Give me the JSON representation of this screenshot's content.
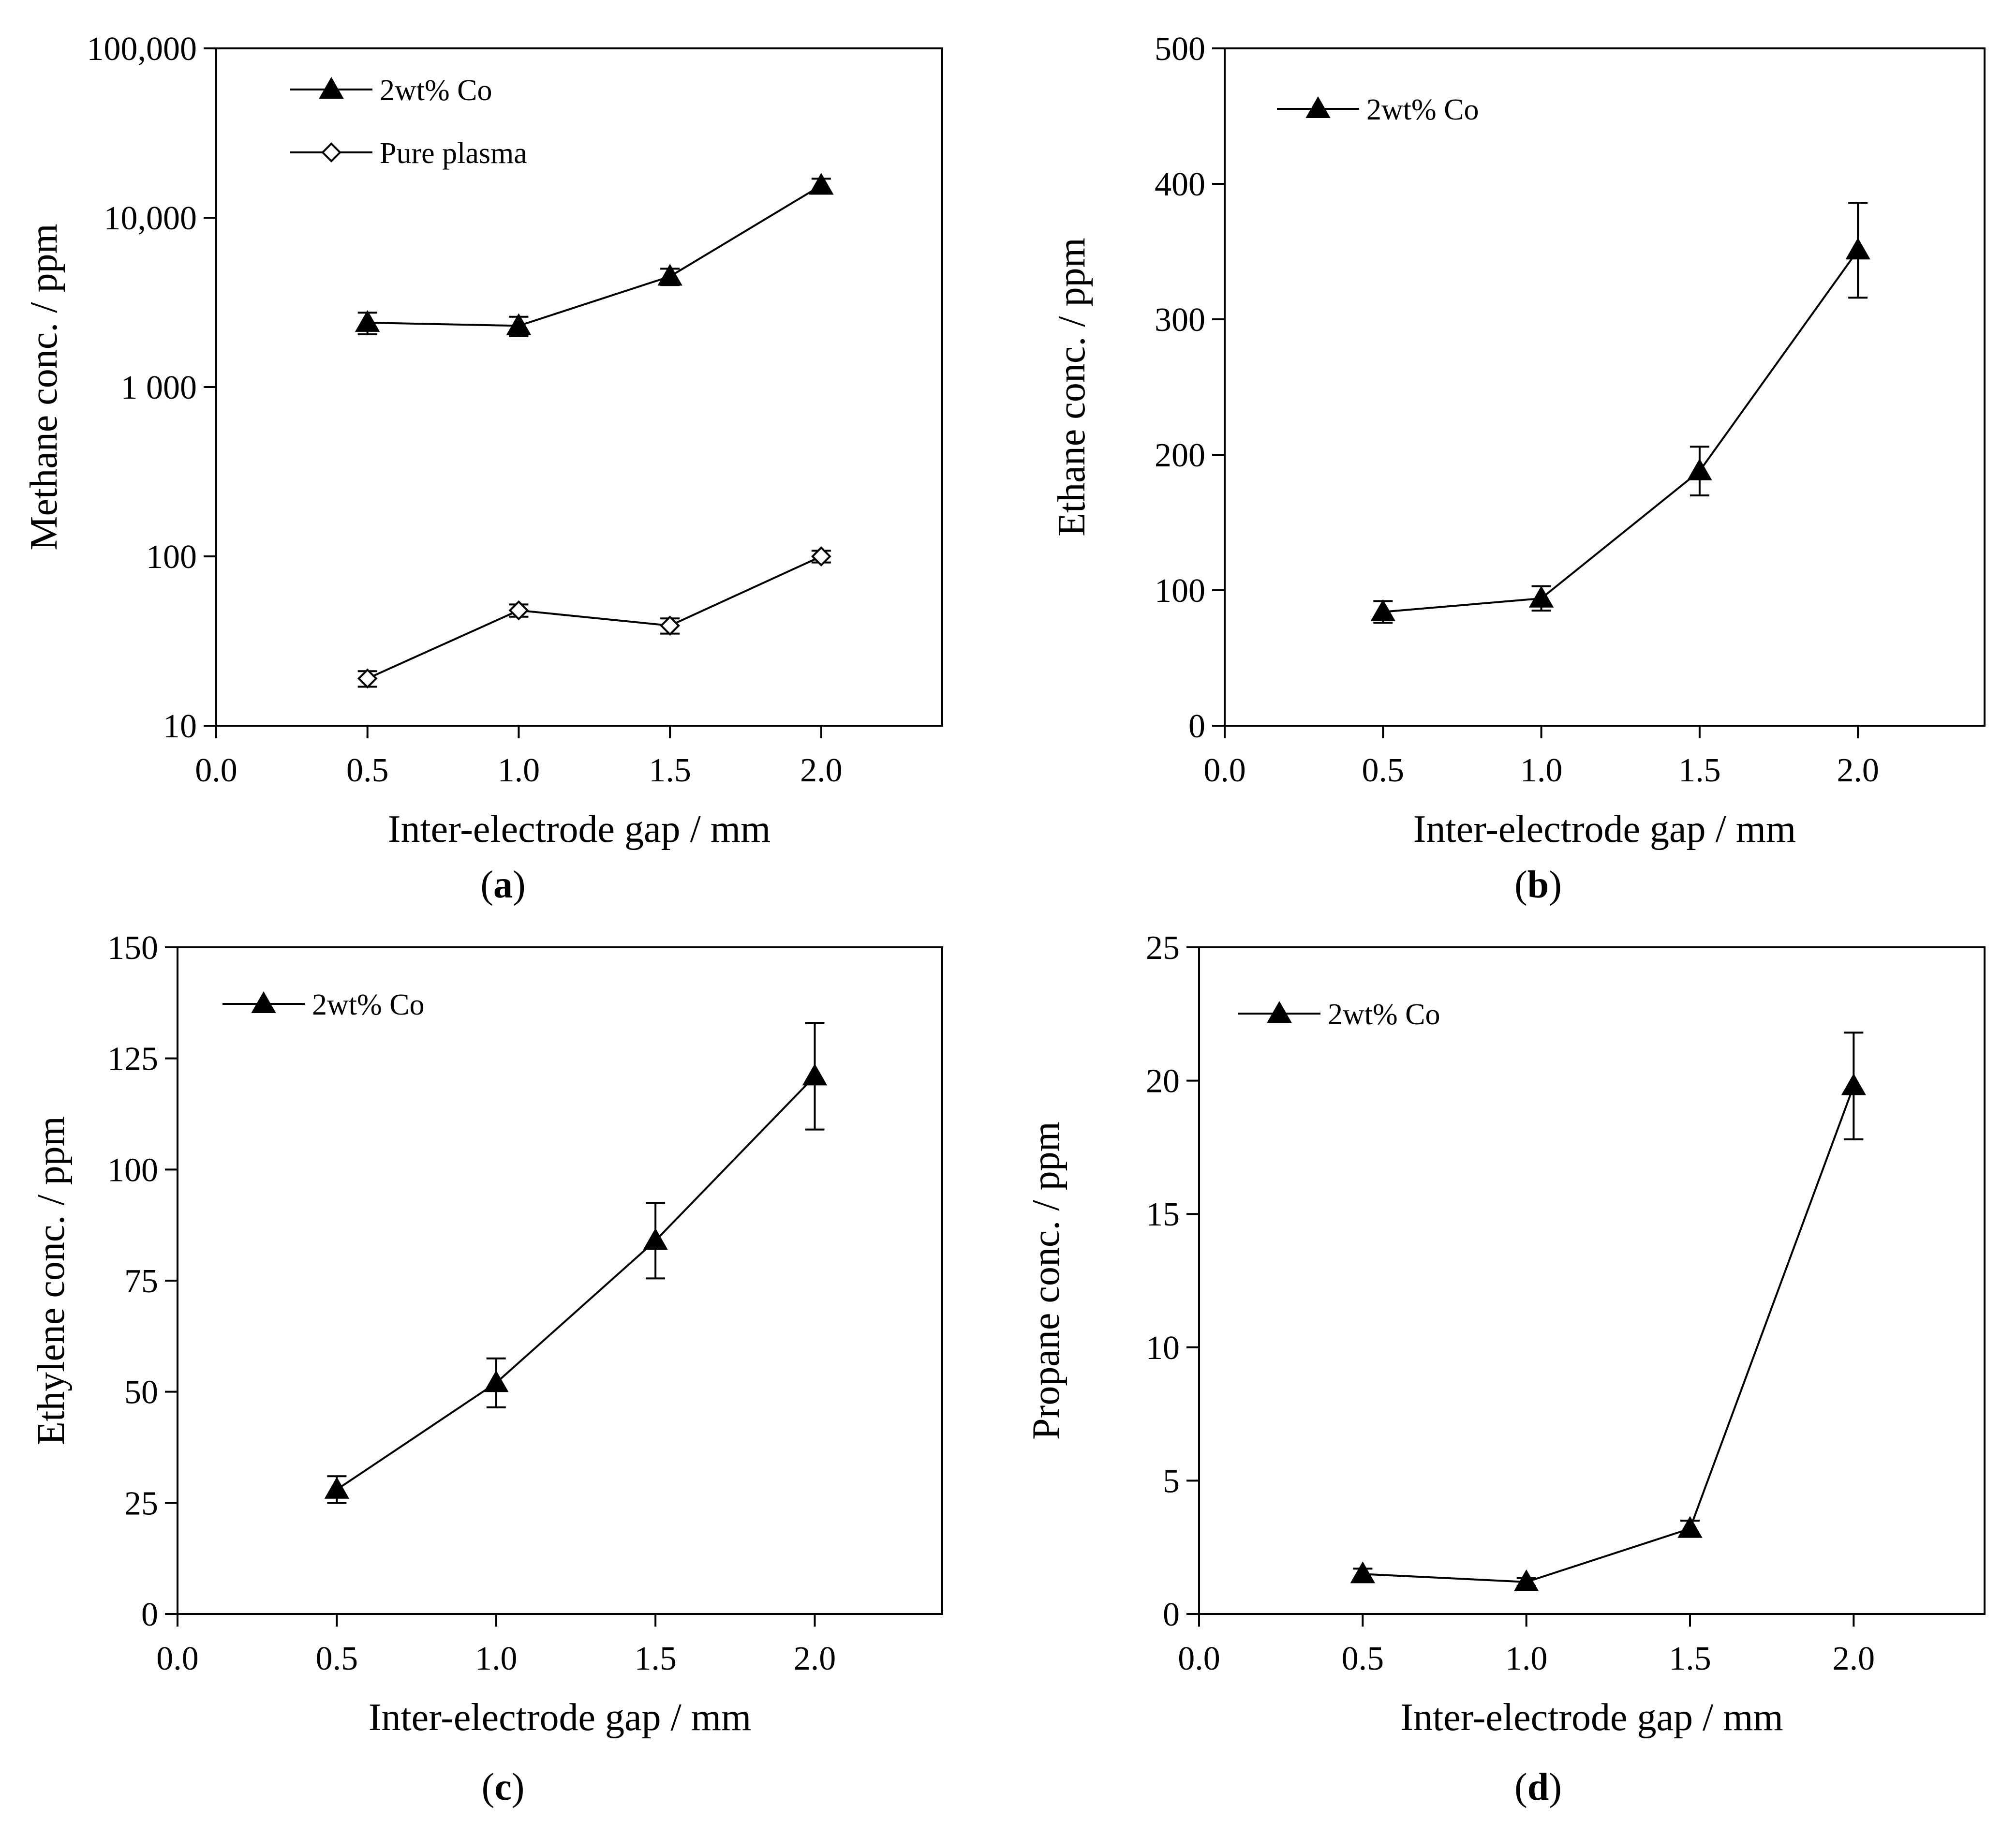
{
  "chart_data": [
    {
      "type": "line",
      "panel": "a",
      "panel_label_parts": [
        "(",
        "a",
        ")"
      ],
      "xlabel": "Inter-electrode gap / mm",
      "ylabel": "Methane conc. / ppm",
      "yscale": "log",
      "xlim": [
        0,
        2.4
      ],
      "ylim": [
        10,
        100000
      ],
      "xticks": [
        0,
        0.5,
        1.0,
        1.5,
        2.0
      ],
      "xtick_labels": [
        "0.0",
        "0.5",
        "1.0",
        "1.5",
        "2.0"
      ],
      "yticks": [
        10,
        100,
        1000,
        10000,
        100000
      ],
      "ytick_labels": [
        "10",
        "100",
        "1 000",
        "10,000",
        "100,000"
      ],
      "series": [
        {
          "name": "2wt% Co",
          "marker": "filled-triangle",
          "x": [
            0.5,
            1.0,
            1.5,
            2.0
          ],
          "y": [
            2400,
            2300,
            4500,
            15500
          ],
          "err": [
            350,
            300,
            500,
            1500
          ]
        },
        {
          "name": "Pure plasma",
          "marker": "open-diamond",
          "x": [
            0.5,
            1.0,
            1.5,
            2.0
          ],
          "y": [
            19,
            48,
            39,
            100
          ],
          "err": [
            2,
            4,
            4,
            8
          ]
        }
      ]
    },
    {
      "type": "line",
      "panel": "b",
      "panel_label_parts": [
        "(",
        "b",
        ")"
      ],
      "xlabel": "Inter-electrode gap / mm",
      "ylabel": "Ethane conc. / ppm",
      "yscale": "linear",
      "xlim": [
        0,
        2.4
      ],
      "ylim": [
        0,
        500
      ],
      "xticks": [
        0,
        0.5,
        1.0,
        1.5,
        2.0
      ],
      "xtick_labels": [
        "0.0",
        "0.5",
        "1.0",
        "1.5",
        "2.0"
      ],
      "yticks": [
        0,
        100,
        200,
        300,
        400,
        500
      ],
      "ytick_labels": [
        "0",
        "100",
        "200",
        "300",
        "400",
        "500"
      ],
      "series": [
        {
          "name": "2wt% Co",
          "marker": "filled-triangle",
          "x": [
            0.5,
            1.0,
            1.5,
            2.0
          ],
          "y": [
            84,
            94,
            188,
            351
          ],
          "err": [
            8,
            9,
            18,
            35
          ]
        }
      ]
    },
    {
      "type": "line",
      "panel": "c",
      "panel_label_parts": [
        "(",
        "c",
        ")"
      ],
      "xlabel": "Inter-electrode gap / mm",
      "ylabel": "Ethylene conc. / ppm",
      "yscale": "linear",
      "xlim": [
        0,
        2.4
      ],
      "ylim": [
        0,
        150
      ],
      "xticks": [
        0,
        0.5,
        1.0,
        1.5,
        2.0
      ],
      "xtick_labels": [
        "0.0",
        "0.5",
        "1.0",
        "1.5",
        "2.0"
      ],
      "yticks": [
        0,
        25,
        50,
        75,
        100,
        125,
        150
      ],
      "ytick_labels": [
        "0",
        "25",
        "50",
        "75",
        "100",
        "125",
        "150"
      ],
      "series": [
        {
          "name": "2wt% Co",
          "marker": "filled-triangle",
          "x": [
            0.5,
            1.0,
            1.5,
            2.0
          ],
          "y": [
            28,
            52,
            84,
            121
          ],
          "err": [
            3,
            5.5,
            8.5,
            12
          ]
        }
      ]
    },
    {
      "type": "line",
      "panel": "d",
      "panel_label_parts": [
        "(",
        "d",
        ")"
      ],
      "xlabel": "Inter-electrode gap / mm",
      "ylabel": "Propane conc. / ppm",
      "yscale": "linear",
      "xlim": [
        0,
        2.4
      ],
      "ylim": [
        0,
        25
      ],
      "xticks": [
        0,
        0.5,
        1.0,
        1.5,
        2.0
      ],
      "xtick_labels": [
        "0.0",
        "0.5",
        "1.0",
        "1.5",
        "2.0"
      ],
      "yticks": [
        0,
        5,
        10,
        15,
        20,
        25
      ],
      "ytick_labels": [
        "0",
        "5",
        "10",
        "15",
        "20",
        "25"
      ],
      "series": [
        {
          "name": "2wt% Co",
          "marker": "filled-triangle",
          "x": [
            0.5,
            1.0,
            1.5,
            2.0
          ],
          "y": [
            1.5,
            1.2,
            3.2,
            19.8
          ],
          "err": [
            0.2,
            0.15,
            0.3,
            2.0
          ]
        }
      ]
    }
  ]
}
